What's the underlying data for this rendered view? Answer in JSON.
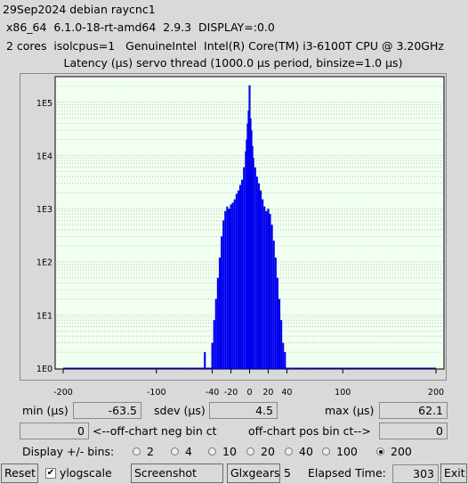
{
  "header": {
    "line1": "29Sep2024 debian raycnc1",
    "line2": " x86_64  6.1.0-18-rt-amd64  2.9.3  DISPLAY=:0.0",
    "line3": " 2 cores  isolcpus=1   GenuineIntel  Intel(R) Core(TM) i3-6100T CPU @ 3.20GHz"
  },
  "chart_data": {
    "type": "bar",
    "title": "Latency (µs) servo thread (1000.0 µs period, binsize=1.0 µs)",
    "xlabel": "",
    "ylabel": "",
    "x_ticks": [
      -200,
      -100,
      -40,
      -20,
      0,
      20,
      40,
      100,
      200
    ],
    "y_ticks": [
      "1E0",
      "1E1",
      "1E2",
      "1E3",
      "1E4",
      "1E5"
    ],
    "xlim": [
      -200,
      200
    ],
    "ylim_log10": [
      0,
      5.35
    ],
    "log_scale": true,
    "bar_color": "#0000ee",
    "plot_bg": "#f0fff0",
    "x": [
      -64,
      -48,
      -44,
      -40,
      -38,
      -36,
      -34,
      -32,
      -30,
      -28,
      -26,
      -24,
      -22,
      -20,
      -18,
      -16,
      -14,
      -12,
      -10,
      -8,
      -6,
      -4,
      -3,
      -2,
      -1,
      0,
      1,
      2,
      3,
      4,
      6,
      8,
      10,
      12,
      14,
      16,
      18,
      20,
      22,
      24,
      26,
      28,
      30,
      32,
      34,
      36,
      38,
      40,
      46,
      62
    ],
    "values": [
      1,
      2,
      1,
      3,
      8,
      20,
      50,
      120,
      300,
      600,
      900,
      1100,
      1000,
      1200,
      1300,
      1500,
      1900,
      2200,
      2800,
      3500,
      6000,
      12000,
      20000,
      40000,
      70000,
      210000,
      50000,
      30000,
      15000,
      9000,
      6000,
      4000,
      3000,
      2200,
      1500,
      1100,
      900,
      1000,
      800,
      500,
      250,
      120,
      50,
      20,
      8,
      3,
      2,
      1,
      1,
      1
    ]
  },
  "stats": {
    "min_label": "min (µs)",
    "min_value": "-63.5",
    "sdev_label": "sdev (µs)",
    "sdev_value": "4.5",
    "max_label": "max (µs)",
    "max_value": "62.1",
    "neg_value": "0",
    "neg_label": "<--off-chart neg bin ct",
    "pos_label": "off-chart pos bin ct-->",
    "pos_value": "0"
  },
  "bins": {
    "label": "Display +/- bins:",
    "options": [
      "2",
      "4",
      "10",
      "20",
      "40",
      "100",
      "200"
    ],
    "selected": "200"
  },
  "buttons": {
    "reset": "Reset",
    "ylogscale": "ylogscale",
    "ylogscale_checked": true,
    "screenshot": "Screenshot",
    "glxgears": "Glxgears",
    "glx_value": "5",
    "elapsed_label": "Elapsed Time:",
    "elapsed_value": "303",
    "exit": "Exit"
  }
}
